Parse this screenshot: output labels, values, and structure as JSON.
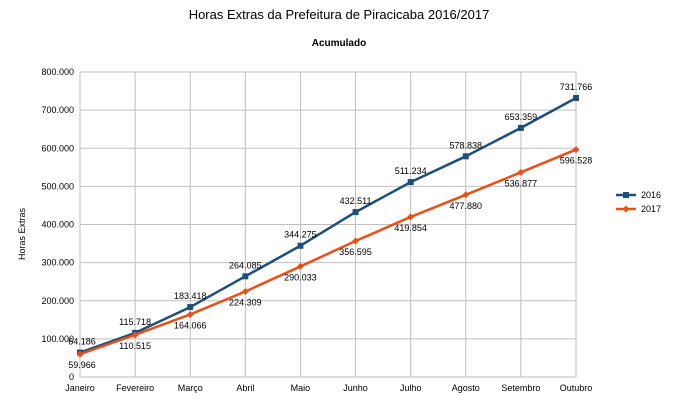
{
  "chart_data": {
    "type": "line",
    "title": "Horas Extras da Prefeitura de Piracicaba 2016/2017",
    "subtitle": "Acumulado",
    "ylabel": "Horas Extras",
    "xlabel": "",
    "ylim": [
      0,
      800000
    ],
    "yticks": [
      0,
      100000,
      200000,
      300000,
      400000,
      500000,
      600000,
      700000,
      800000
    ],
    "ytick_labels": [
      "0",
      "100.000",
      "200.000",
      "300.000",
      "400.000",
      "500.000",
      "600.000",
      "700.000",
      "800.000"
    ],
    "grid": true,
    "legend_position": "right",
    "categories": [
      "Janeiro",
      "Fevereiro",
      "Março",
      "Abril",
      "Maio",
      "Junho",
      "Julho",
      "Agosto",
      "Setembro",
      "Outubro"
    ],
    "series": [
      {
        "name": "2016",
        "color": "#1f4e79",
        "marker": "square",
        "values": [
          64186,
          115718,
          183418,
          264085,
          344275,
          432511,
          511234,
          578838,
          653359,
          731766
        ],
        "labels": [
          "64.186",
          "115.718",
          "183.418",
          "264.085",
          "344.275",
          "432.511",
          "511.234",
          "578.838",
          "653.359",
          "731.766"
        ]
      },
      {
        "name": "2017",
        "color": "#e8501a",
        "marker": "diamond",
        "values": [
          59966,
          110515,
          164066,
          224309,
          290033,
          356595,
          419854,
          477880,
          536877,
          596528
        ],
        "labels": [
          "59.966",
          "110.515",
          "164.066",
          "224.309",
          "290.033",
          "356.595",
          "419.854",
          "477.880",
          "536.877",
          "596.528"
        ]
      }
    ]
  }
}
